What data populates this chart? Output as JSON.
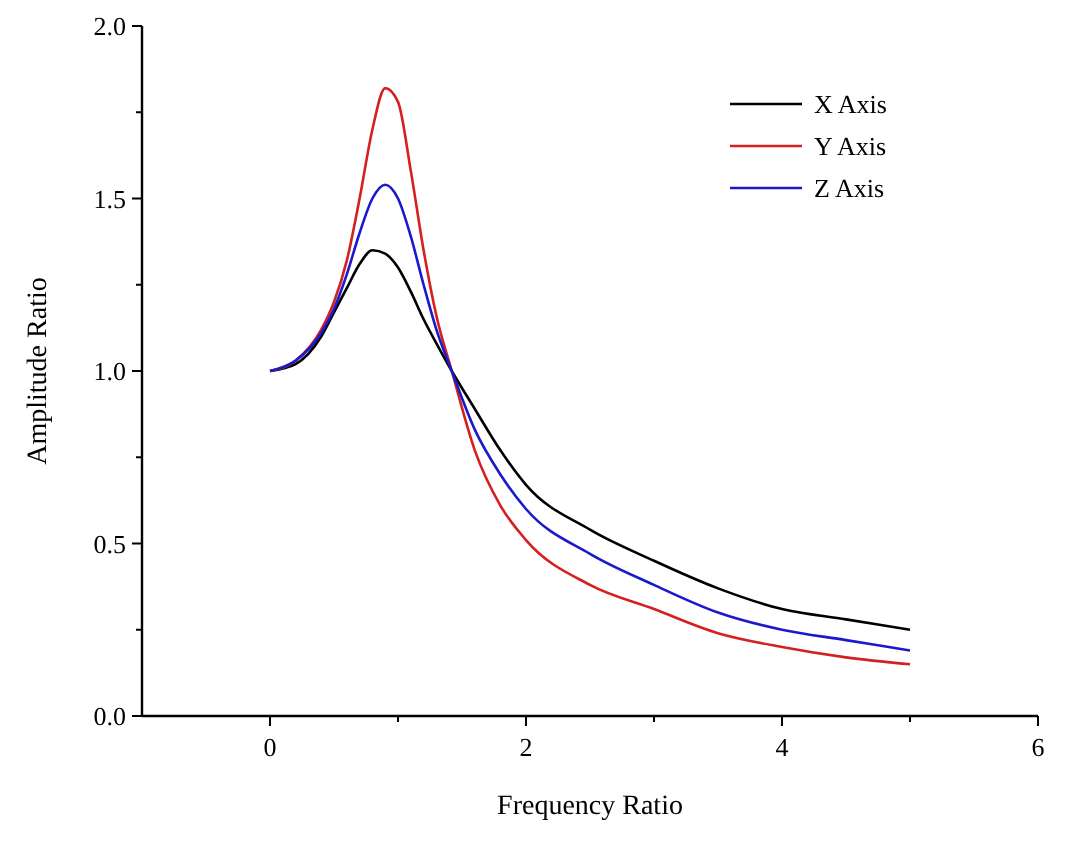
{
  "chart_data": {
    "type": "line",
    "xlabel": "Frequency Ratio",
    "ylabel": "Amplitude Ratio",
    "x": [
      0,
      0.2,
      0.4,
      0.5,
      0.6,
      0.7,
      0.8,
      0.9,
      1.0,
      1.1,
      1.2,
      1.3,
      1.42,
      1.6,
      1.8,
      2,
      2.5,
      3,
      3.5,
      4,
      4.5,
      5
    ],
    "series": [
      {
        "name": "X Axis",
        "color": "#000000",
        "values": [
          1.0,
          1.02,
          1.1,
          1.17,
          1.24,
          1.31,
          1.35,
          1.34,
          1.3,
          1.23,
          1.15,
          1.08,
          1.0,
          0.89,
          0.77,
          0.67,
          0.54,
          0.45,
          0.37,
          0.31,
          0.28,
          0.25
        ]
      },
      {
        "name": "Y Axis",
        "color": "#d42020",
        "values": [
          1.0,
          1.03,
          1.12,
          1.2,
          1.32,
          1.5,
          1.7,
          1.82,
          1.78,
          1.58,
          1.35,
          1.16,
          1.0,
          0.77,
          0.61,
          0.51,
          0.38,
          0.31,
          0.24,
          0.2,
          0.17,
          0.15
        ]
      },
      {
        "name": "Z Axis",
        "color": "#1a1acc",
        "values": [
          1.0,
          1.03,
          1.11,
          1.18,
          1.28,
          1.4,
          1.5,
          1.54,
          1.5,
          1.39,
          1.25,
          1.12,
          1.0,
          0.83,
          0.7,
          0.6,
          0.47,
          0.38,
          0.3,
          0.25,
          0.22,
          0.19
        ]
      }
    ],
    "xlim": [
      -1,
      6
    ],
    "xticks": [
      0,
      {
        "value": 1,
        "label": null
      },
      2,
      {
        "value": 3,
        "label": null
      },
      4,
      {
        "value": 5,
        "label": null
      },
      6
    ],
    "ylim": [
      0,
      2
    ],
    "yticks": [
      {
        "value": 0,
        "label": "0.0"
      },
      {
        "value": 0.25,
        "label": null
      },
      {
        "value": 0.5,
        "label": "0.5"
      },
      {
        "value": 0.75,
        "label": null
      },
      {
        "value": 1,
        "label": "1.0"
      },
      {
        "value": 1.25,
        "label": null
      },
      {
        "value": 1.5,
        "label": "1.5"
      },
      {
        "value": 1.75,
        "label": null
      },
      {
        "value": 2,
        "label": "2.0"
      }
    ],
    "grid": false,
    "legend": "top right",
    "marker": "none",
    "line_style": "solid"
  }
}
